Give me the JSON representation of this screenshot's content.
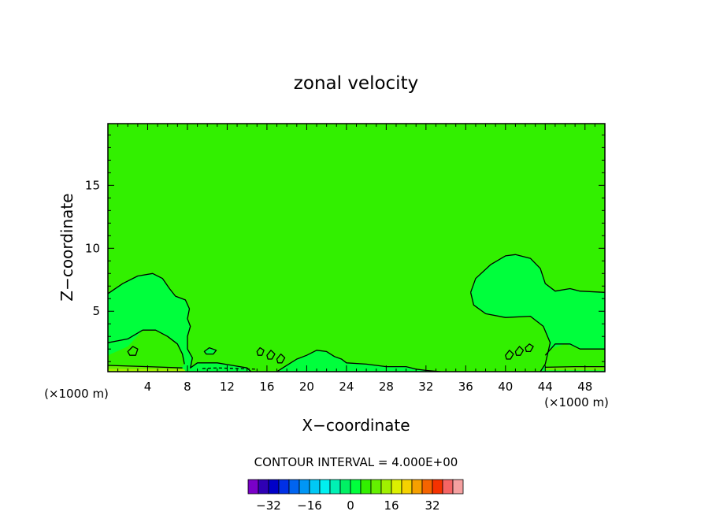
{
  "chart_data": {
    "type": "heatmap",
    "title": "zonal velocity",
    "xlabel": "X−coordinate",
    "ylabel": "Z−coordinate",
    "x_unit": "(×1000 m)",
    "y_unit": "(×1000 m)",
    "xlim": [
      0,
      50
    ],
    "ylim": [
      0.2,
      19.9
    ],
    "x_ticks": [
      4,
      8,
      12,
      16,
      20,
      24,
      28,
      32,
      36,
      40,
      44,
      48
    ],
    "x_tick_labels": [
      "4",
      "8",
      "12",
      "16",
      "20",
      "24",
      "28",
      "32",
      "36",
      "40",
      "44",
      "48"
    ],
    "y_ticks": [
      5,
      10,
      15
    ],
    "y_tick_labels": [
      "5",
      "10",
      "15"
    ],
    "contour_interval_text": "CONTOUR INTERVAL = 4.000E+00",
    "contour_interval": 4,
    "background_level": 4,
    "colorbar": {
      "levels": [
        -40,
        -36,
        -32,
        -28,
        -24,
        -20,
        -16,
        -12,
        -8,
        -4,
        0,
        4,
        8,
        12,
        16,
        20,
        24,
        28,
        32,
        36,
        40
      ],
      "colors": [
        "#7a00c8",
        "#2f00b4",
        "#0000c8",
        "#0030e6",
        "#0064f0",
        "#0096f5",
        "#00c8f5",
        "#00f0f0",
        "#00f0b4",
        "#00f064",
        "#00ff3c",
        "#32f000",
        "#64f000",
        "#a0f000",
        "#dcf000",
        "#f5d200",
        "#f5a000",
        "#f56400",
        "#f53200",
        "#f56464",
        "#f5a0a0"
      ],
      "tick_values": [
        -32,
        -16,
        0,
        16,
        32
      ],
      "tick_labels": [
        "−32",
        "−16",
        "0",
        "16",
        "32"
      ]
    },
    "regions": [
      {
        "level": 0,
        "points": [
          [
            0,
            6.4
          ],
          [
            1.5,
            7.2
          ],
          [
            3,
            7.8
          ],
          [
            4.5,
            8
          ],
          [
            5.5,
            7.6
          ],
          [
            6.2,
            6.8
          ],
          [
            6.8,
            6.2
          ],
          [
            7.8,
            5.9
          ],
          [
            8.2,
            5.2
          ],
          [
            8,
            4.4
          ],
          [
            8.3,
            3.8
          ],
          [
            8,
            3
          ],
          [
            8,
            2
          ],
          [
            8.5,
            1.3
          ],
          [
            8.3,
            0.5
          ],
          [
            8,
            0.2
          ],
          [
            0,
            0.2
          ]
        ]
      },
      {
        "level": 0,
        "points": [
          [
            36.5,
            6.5
          ],
          [
            37,
            7.6
          ],
          [
            38.5,
            8.7
          ],
          [
            40,
            9.4
          ],
          [
            41,
            9.5
          ],
          [
            42.5,
            9.2
          ],
          [
            43.5,
            8.4
          ],
          [
            44,
            7.2
          ],
          [
            45,
            6.6
          ],
          [
            46.5,
            6.8
          ],
          [
            47.5,
            6.6
          ],
          [
            50,
            6.5
          ],
          [
            50,
            0.2
          ],
          [
            43.5,
            0.2
          ],
          [
            44,
            0.8
          ],
          [
            44.5,
            2.5
          ],
          [
            43.8,
            3.8
          ],
          [
            42.5,
            4.6
          ],
          [
            40,
            4.5
          ],
          [
            38,
            4.8
          ],
          [
            36.8,
            5.5
          ]
        ]
      },
      {
        "level": 0,
        "points": [
          [
            8.3,
            0.5
          ],
          [
            9,
            0.9
          ],
          [
            11,
            0.9
          ],
          [
            12.5,
            0.7
          ],
          [
            14,
            0.5
          ],
          [
            14.4,
            0.2
          ],
          [
            8,
            0.2
          ]
        ]
      },
      {
        "level": 0,
        "points": [
          [
            17,
            0.2
          ],
          [
            17.8,
            0.6
          ],
          [
            19,
            1.2
          ],
          [
            20,
            1.5
          ],
          [
            21,
            1.9
          ],
          [
            22,
            1.8
          ],
          [
            22.8,
            1.4
          ],
          [
            23.5,
            1.2
          ],
          [
            24,
            0.9
          ],
          [
            26,
            0.8
          ],
          [
            28,
            0.6
          ],
          [
            30,
            0.6
          ],
          [
            31,
            0.4
          ],
          [
            32,
            0.3
          ],
          [
            33.5,
            0.2
          ]
        ]
      },
      {
        "level": 0,
        "points": [
          [
            9.7,
            1.8
          ],
          [
            10.2,
            2.1
          ],
          [
            10.9,
            1.9
          ],
          [
            10.6,
            1.6
          ],
          [
            9.9,
            1.6
          ]
        ]
      },
      {
        "level": 4,
        "points": [
          [
            0,
            1.5
          ],
          [
            2,
            2.2
          ],
          [
            3.5,
            3.5
          ],
          [
            4.8,
            3.5
          ],
          [
            6,
            3
          ],
          [
            7,
            2.4
          ],
          [
            7.5,
            1.6
          ],
          [
            7.7,
            0.8
          ],
          [
            7.5,
            0.6
          ],
          [
            6,
            0.5
          ],
          [
            0,
            0.5
          ]
        ]
      },
      {
        "level": 4,
        "points": [
          [
            44,
            0.8
          ],
          [
            44.5,
            2
          ],
          [
            46,
            2.4
          ],
          [
            47.5,
            2
          ],
          [
            49,
            2
          ],
          [
            50,
            2
          ],
          [
            50,
            0.5
          ],
          [
            44,
            0.5
          ]
        ]
      },
      {
        "level": 8,
        "points": [
          [
            0,
            0.7
          ],
          [
            4,
            0.6
          ],
          [
            7.5,
            0.5
          ],
          [
            7.7,
            0.3
          ],
          [
            0,
            0.3
          ]
        ]
      },
      {
        "level": 8,
        "points": [
          [
            44,
            0.55
          ],
          [
            50,
            0.6
          ],
          [
            50,
            0.3
          ],
          [
            44,
            0.3
          ]
        ]
      },
      {
        "level": 12,
        "points": [
          [
            0,
            0.42
          ],
          [
            7.7,
            0.38
          ],
          [
            7.8,
            0.24
          ],
          [
            0,
            0.24
          ]
        ]
      }
    ],
    "contours": [
      {
        "level": 4,
        "closed": false,
        "points": [
          [
            0,
            6.4
          ],
          [
            1.5,
            7.2
          ],
          [
            3,
            7.8
          ],
          [
            4.5,
            8
          ],
          [
            5.5,
            7.6
          ],
          [
            6.2,
            6.8
          ],
          [
            6.8,
            6.2
          ],
          [
            7.8,
            5.9
          ],
          [
            8.2,
            5.2
          ],
          [
            8,
            4.4
          ],
          [
            8.3,
            3.8
          ],
          [
            8,
            3
          ],
          [
            8,
            2
          ],
          [
            8.5,
            1.3
          ],
          [
            8.3,
            0.5
          ],
          [
            9,
            0.9
          ],
          [
            11,
            0.9
          ],
          [
            12.5,
            0.7
          ],
          [
            14,
            0.5
          ],
          [
            14.4,
            0.2
          ]
        ]
      },
      {
        "level": 4,
        "closed": false,
        "points": [
          [
            36.5,
            6.5
          ],
          [
            37,
            7.6
          ],
          [
            38.5,
            8.7
          ],
          [
            40,
            9.4
          ],
          [
            41,
            9.5
          ],
          [
            42.5,
            9.2
          ],
          [
            43.5,
            8.4
          ],
          [
            44,
            7.2
          ],
          [
            45,
            6.6
          ],
          [
            46.5,
            6.8
          ],
          [
            47.5,
            6.6
          ],
          [
            50,
            6.5
          ]
        ]
      },
      {
        "level": 4,
        "closed": false,
        "points": [
          [
            36.5,
            6.5
          ],
          [
            36.8,
            5.5
          ],
          [
            38,
            4.8
          ],
          [
            40,
            4.5
          ],
          [
            42.5,
            4.6
          ],
          [
            43.8,
            3.8
          ],
          [
            44.5,
            2.5
          ],
          [
            44,
            0.8
          ],
          [
            43.5,
            0.2
          ]
        ]
      },
      {
        "level": 4,
        "closed": false,
        "points": [
          [
            17,
            0.2
          ],
          [
            17.8,
            0.6
          ],
          [
            19,
            1.2
          ],
          [
            20,
            1.5
          ],
          [
            21,
            1.9
          ],
          [
            22,
            1.8
          ],
          [
            22.8,
            1.4
          ],
          [
            23.5,
            1.2
          ],
          [
            24,
            0.9
          ],
          [
            26,
            0.8
          ],
          [
            28,
            0.6
          ],
          [
            30,
            0.6
          ],
          [
            31,
            0.4
          ],
          [
            32,
            0.3
          ],
          [
            33.5,
            0.2
          ]
        ]
      },
      {
        "level": 0,
        "closed": false,
        "points": [
          [
            0,
            2.5
          ],
          [
            2,
            2.8
          ],
          [
            3.5,
            3.5
          ],
          [
            4.8,
            3.5
          ],
          [
            6,
            3
          ],
          [
            7,
            2.4
          ],
          [
            7.5,
            1.6
          ],
          [
            7.7,
            0.8
          ]
        ]
      },
      {
        "level": 0,
        "closed": false,
        "points": [
          [
            44,
            1.5
          ],
          [
            45,
            2.4
          ],
          [
            46.5,
            2.4
          ],
          [
            47.5,
            2
          ],
          [
            49,
            2
          ],
          [
            50,
            2
          ]
        ]
      },
      {
        "level": 4,
        "closed": true,
        "points": [
          [
            9.7,
            1.8
          ],
          [
            10.2,
            2.1
          ],
          [
            10.9,
            1.9
          ],
          [
            10.6,
            1.6
          ],
          [
            9.9,
            1.6
          ]
        ]
      },
      {
        "level": 0,
        "closed": true,
        "points": [
          [
            2,
            1.8
          ],
          [
            2.5,
            2.2
          ],
          [
            3,
            2
          ],
          [
            2.8,
            1.5
          ],
          [
            2.2,
            1.5
          ]
        ]
      },
      {
        "level": 0,
        "closed": true,
        "points": [
          [
            15,
            1.8
          ],
          [
            15.3,
            2.1
          ],
          [
            15.7,
            1.9
          ],
          [
            15.5,
            1.5
          ],
          [
            15.1,
            1.5
          ]
        ]
      },
      {
        "level": 0,
        "closed": true,
        "points": [
          [
            16,
            1.5
          ],
          [
            16.4,
            1.9
          ],
          [
            16.8,
            1.6
          ],
          [
            16.5,
            1.2
          ],
          [
            16.1,
            1.2
          ]
        ]
      },
      {
        "level": 0,
        "closed": true,
        "points": [
          [
            17,
            1.2
          ],
          [
            17.4,
            1.6
          ],
          [
            17.8,
            1.3
          ],
          [
            17.5,
            0.9
          ],
          [
            17.1,
            0.9
          ]
        ]
      },
      {
        "level": 0,
        "closed": true,
        "points": [
          [
            40,
            1.5
          ],
          [
            40.4,
            1.9
          ],
          [
            40.8,
            1.6
          ],
          [
            40.5,
            1.2
          ],
          [
            40.1,
            1.2
          ]
        ]
      },
      {
        "level": 0,
        "closed": true,
        "points": [
          [
            41,
            1.8
          ],
          [
            41.4,
            2.2
          ],
          [
            41.8,
            1.9
          ],
          [
            41.5,
            1.5
          ],
          [
            41.1,
            1.5
          ]
        ]
      },
      {
        "level": 0,
        "closed": true,
        "points": [
          [
            42,
            2.1
          ],
          [
            42.4,
            2.4
          ],
          [
            42.8,
            2.2
          ],
          [
            42.5,
            1.8
          ],
          [
            42.1,
            1.8
          ]
        ]
      },
      {
        "level": -4,
        "closed": false,
        "dashed": true,
        "points": [
          [
            9.5,
            0.45
          ],
          [
            11,
            0.5
          ],
          [
            13,
            0.45
          ],
          [
            15,
            0.4
          ]
        ]
      },
      {
        "level": 8,
        "closed": false,
        "points": [
          [
            0,
            0.7
          ],
          [
            4,
            0.6
          ],
          [
            7.5,
            0.5
          ]
        ]
      },
      {
        "level": 8,
        "closed": false,
        "points": [
          [
            44,
            0.55
          ],
          [
            47,
            0.6
          ],
          [
            50,
            0.6
          ]
        ]
      }
    ]
  }
}
